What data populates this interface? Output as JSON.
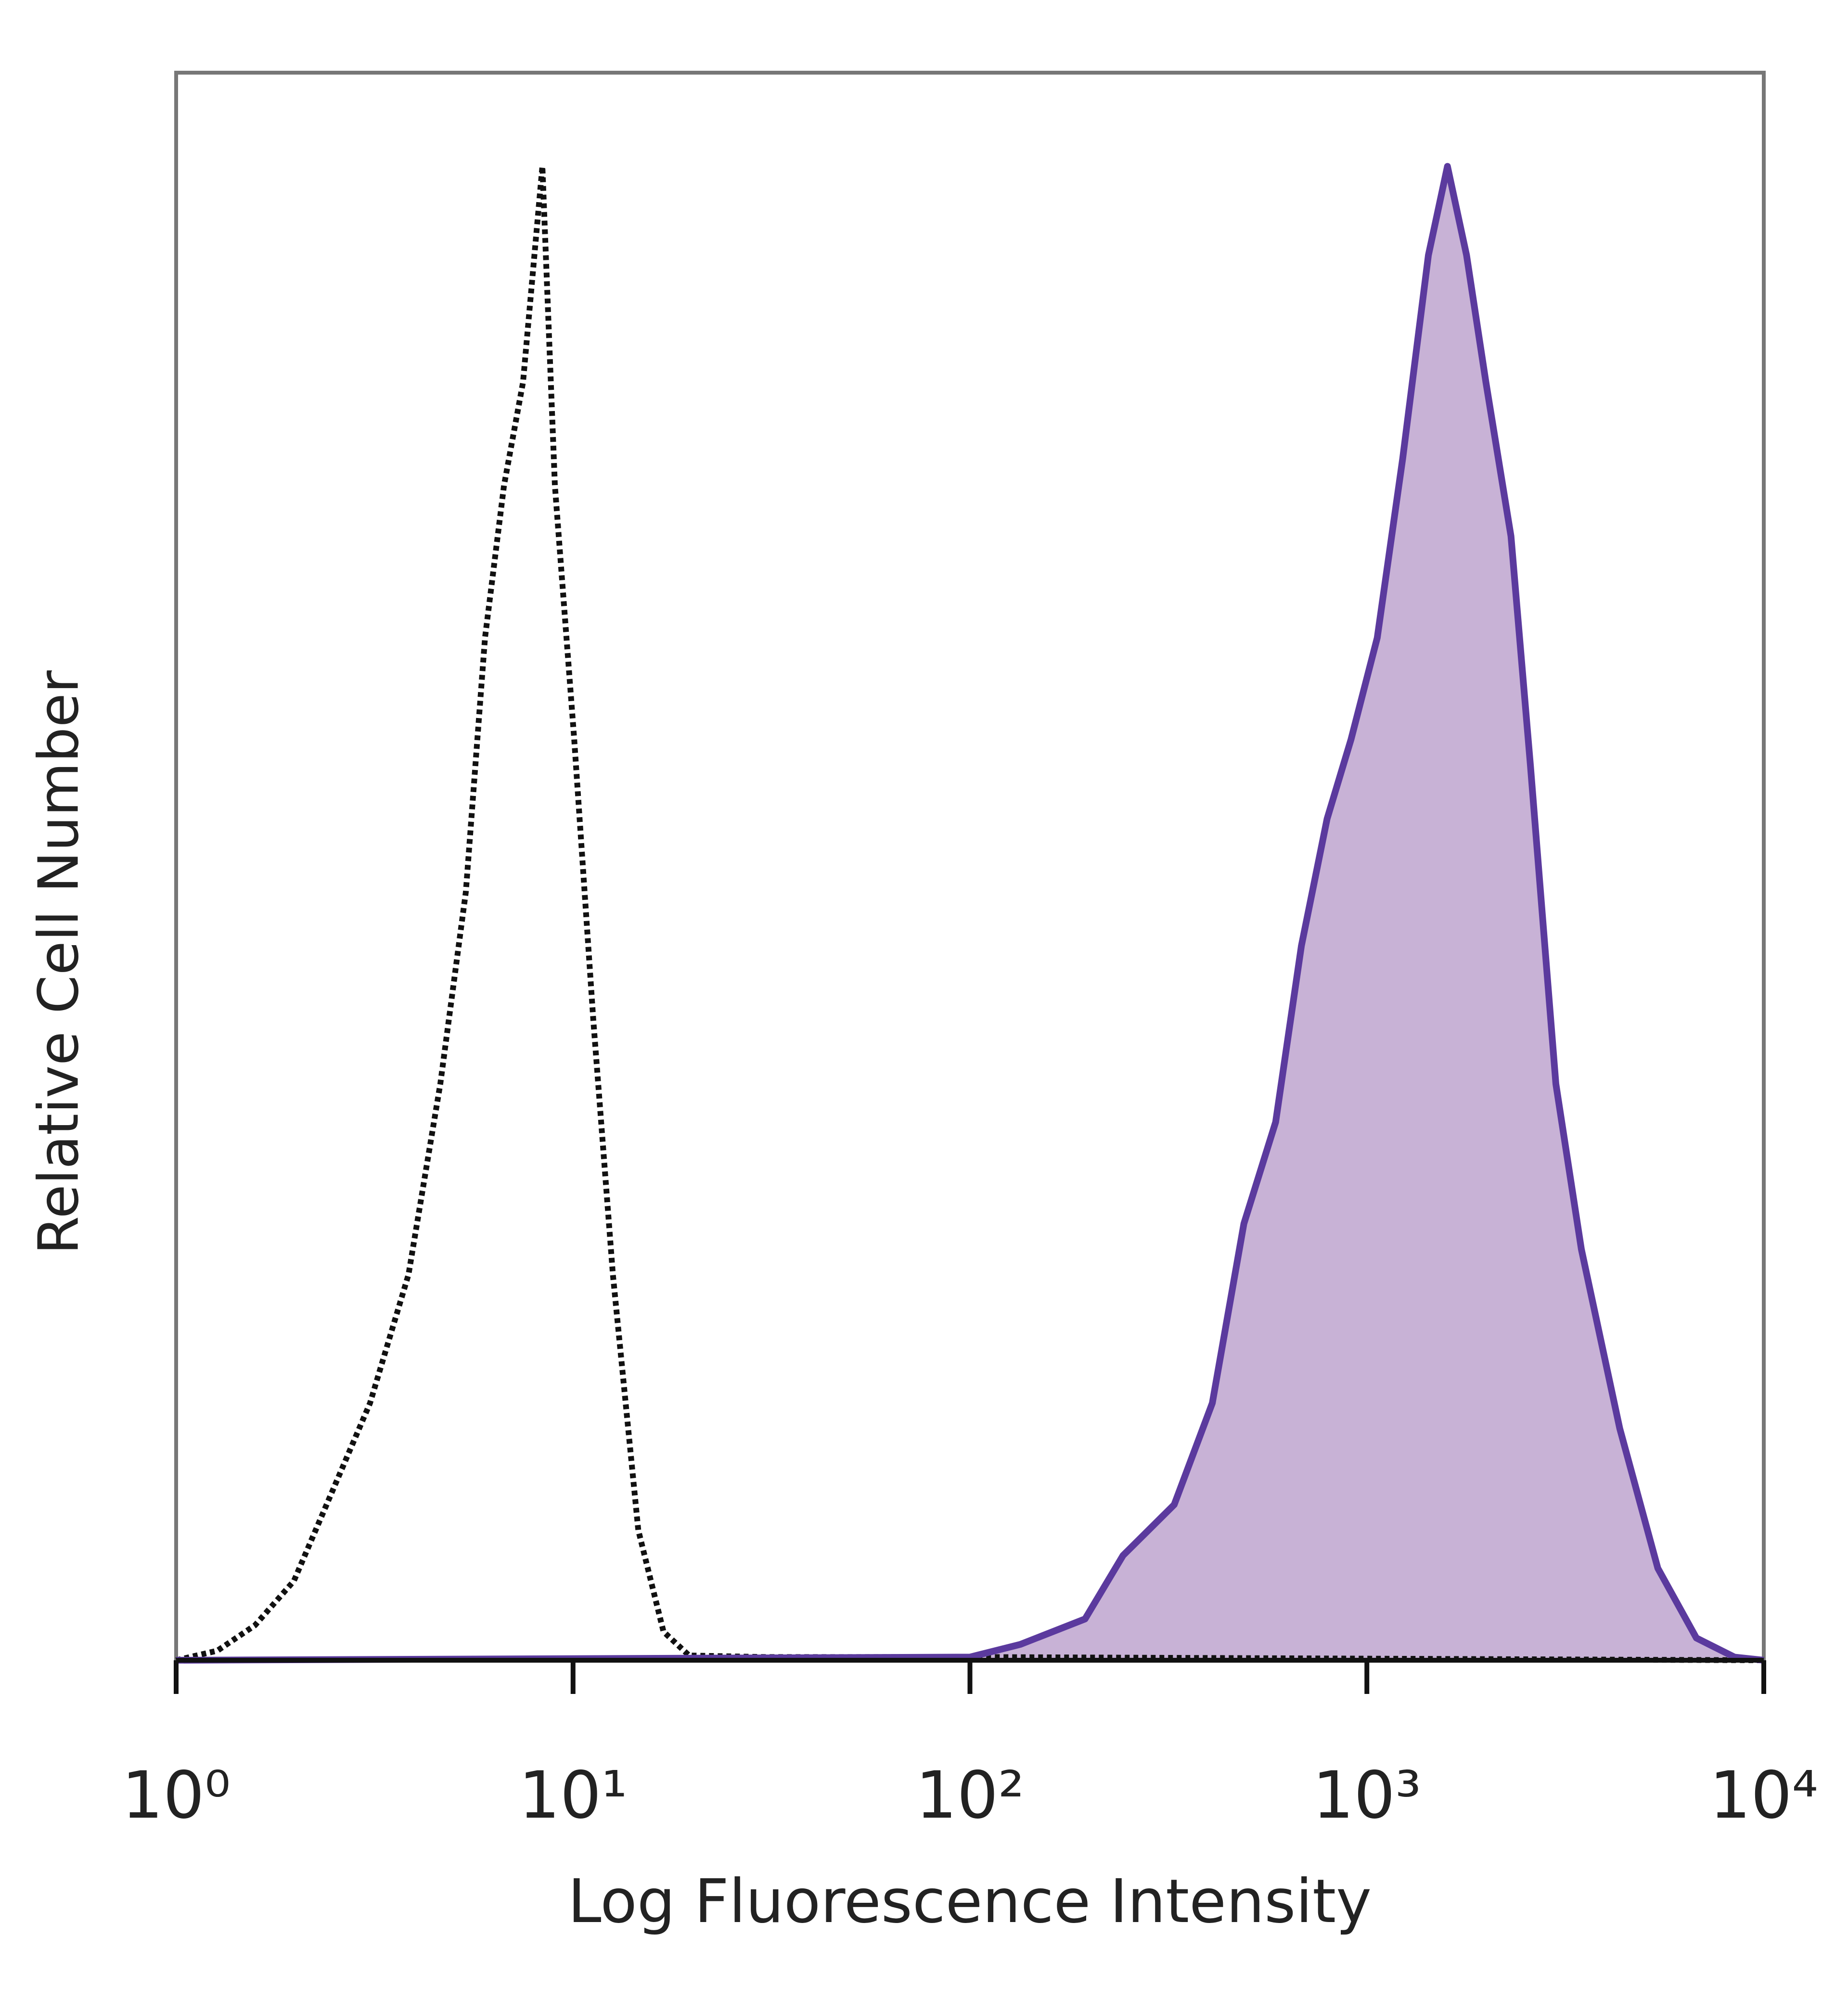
{
  "chart_data": {
    "type": "histogram-overlay",
    "x_label": "Log Fluorescence Intensity",
    "y_label": "Relative Cell Number",
    "xscale": "log",
    "xlim": [
      1,
      10000
    ],
    "xticks": [
      {
        "value": 1,
        "label": "10⁰"
      },
      {
        "value": 10,
        "label": "10¹"
      },
      {
        "value": 100,
        "label": "10²"
      },
      {
        "value": 1000,
        "label": "10³"
      },
      {
        "value": 10000,
        "label": "10⁴"
      }
    ],
    "ylim": [
      0,
      100
    ],
    "series": [
      {
        "color": "#111111",
        "dashed": true,
        "x": [
          1,
          1.27,
          1.58,
          1.98,
          2.47,
          3.08,
          3.85,
          4.63,
          5.37,
          6.0,
          6.7,
          7.48,
          8.37,
          9.0,
          10.07,
          11.25,
          12.6,
          14.6,
          16.9,
          19.6,
          30.6,
          64.1,
          107,
          10000
        ],
        "values": [
          0,
          0.6,
          2.2,
          5,
          10.6,
          16.2,
          24.3,
          36.3,
          48.4,
          64.4,
          74,
          80.5,
          94.1,
          74,
          58,
          40.3,
          24.3,
          8.2,
          1.8,
          0.3,
          0.2,
          0.2,
          0.2,
          0
        ]
      },
      {
        "color": "#5b3a9e",
        "fill": "#c8b2d6",
        "dashed": false,
        "x": [
          1,
          100,
          134,
          195,
          243,
          327,
          408,
          490,
          589,
          684,
          794,
          912,
          1062,
          1231,
          1429,
          1596,
          1783,
          1995,
          2307,
          2582,
          2994,
          3470,
          4336,
          5408,
          6763,
          8433,
          10000
        ],
        "values": [
          0,
          0.2,
          1,
          2.6,
          6.6,
          9.8,
          16.2,
          27.5,
          33.9,
          45,
          53,
          58,
          64.4,
          75.7,
          88.5,
          94.1,
          88.5,
          80.5,
          70.8,
          56.4,
          36.3,
          25.9,
          14.6,
          5.8,
          1.4,
          0.2,
          0
        ]
      }
    ]
  }
}
